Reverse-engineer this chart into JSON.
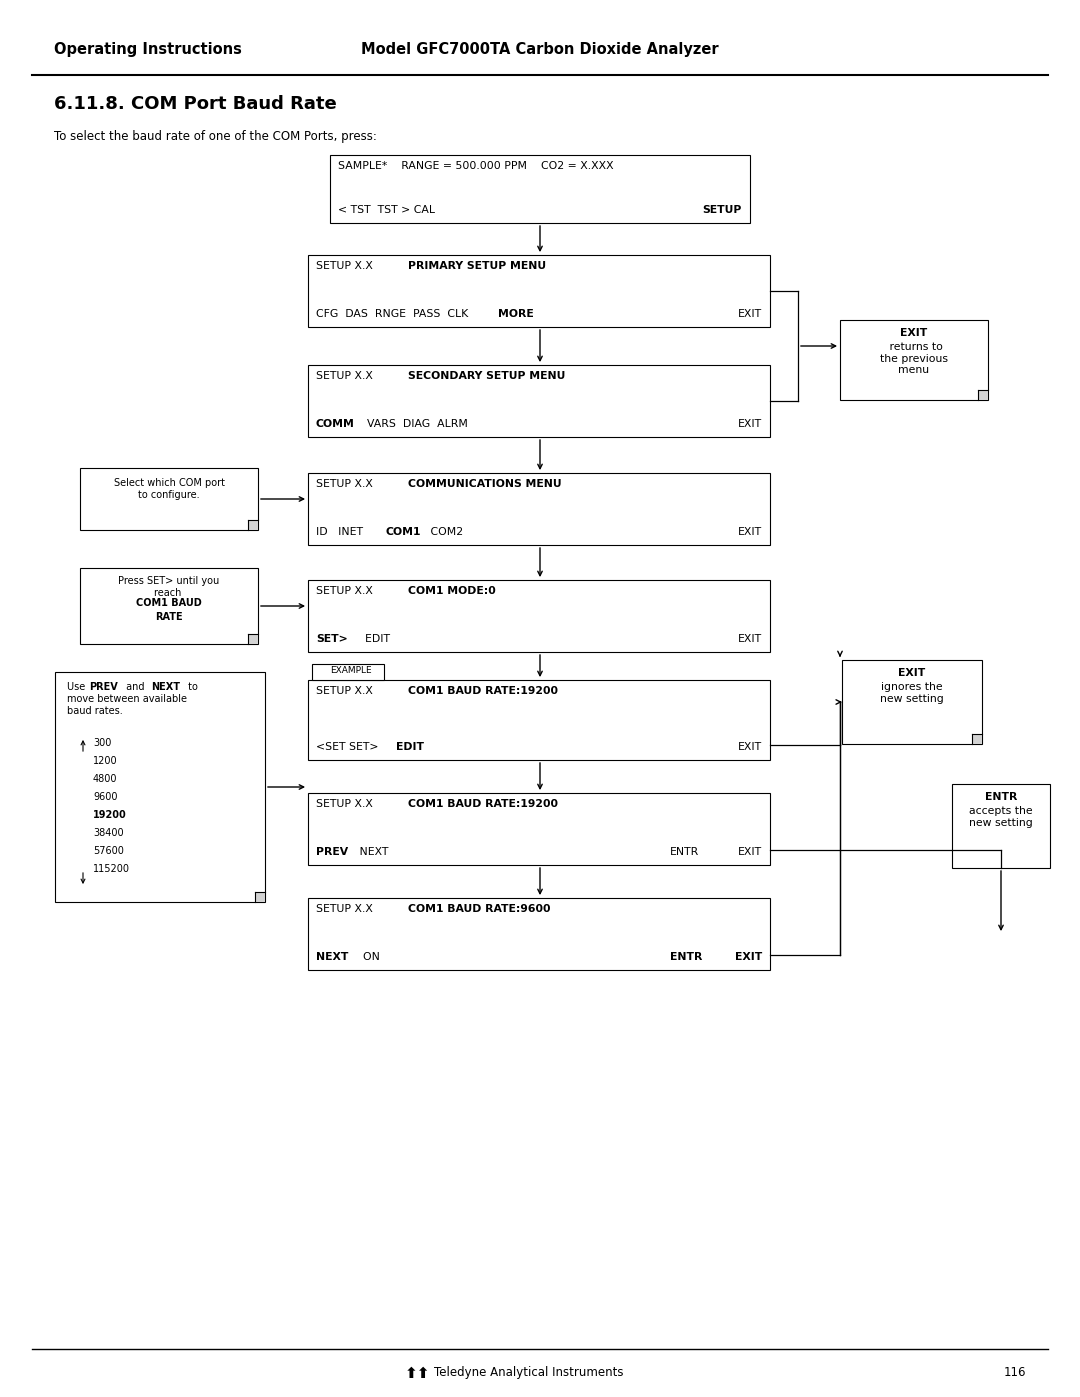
{
  "page_title_left": "Operating Instructions",
  "page_title_right": "Model GFC7000TA Carbon Dioxide Analyzer",
  "section_title": "6.11.8. COM Port Baud Rate",
  "intro_text": "To select the baud rate of one of the COM Ports, press:",
  "footer_text": "Teledyne Analytical Instruments",
  "page_number": "116",
  "bg_color": "#ffffff"
}
